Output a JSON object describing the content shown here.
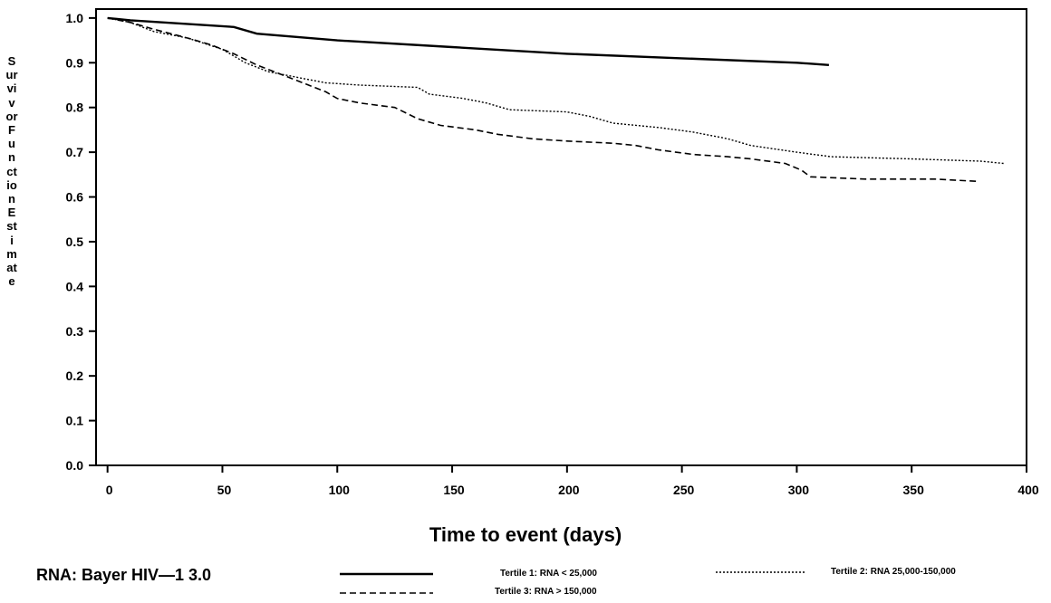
{
  "chart_data": {
    "type": "line",
    "title": "",
    "xlabel": "Time to event (days)",
    "ylabel": "Survivor Function Estimate",
    "xlim": [
      -5,
      400
    ],
    "ylim": [
      0.0,
      1.02
    ],
    "x_ticks": [
      "0",
      "50",
      "100",
      "150",
      "200",
      "250",
      "300",
      "350",
      "400"
    ],
    "y_ticks": [
      "0.0",
      "0.1",
      "0.2",
      "0.3",
      "0.4",
      "0.5",
      "0.6",
      "0.7",
      "0.8",
      "0.9",
      "1.0"
    ],
    "grid": false,
    "legend_position": "bottom",
    "series": [
      {
        "name": "Tertile 1: RNA < 25,000",
        "style": "solid",
        "points": [
          [
            0,
            1.0
          ],
          [
            10,
            0.995
          ],
          [
            55,
            0.98
          ],
          [
            65,
            0.965
          ],
          [
            100,
            0.95
          ],
          [
            150,
            0.935
          ],
          [
            200,
            0.92
          ],
          [
            250,
            0.91
          ],
          [
            300,
            0.9
          ],
          [
            314,
            0.895
          ]
        ]
      },
      {
        "name": "Tertile 2: RNA 25,000-150,000",
        "style": "dotted",
        "points": [
          [
            0,
            1.0
          ],
          [
            10,
            0.99
          ],
          [
            20,
            0.97
          ],
          [
            35,
            0.955
          ],
          [
            50,
            0.93
          ],
          [
            60,
            0.9
          ],
          [
            70,
            0.88
          ],
          [
            85,
            0.865
          ],
          [
            95,
            0.855
          ],
          [
            110,
            0.85
          ],
          [
            135,
            0.845
          ],
          [
            140,
            0.83
          ],
          [
            155,
            0.82
          ],
          [
            165,
            0.81
          ],
          [
            175,
            0.795
          ],
          [
            200,
            0.79
          ],
          [
            210,
            0.78
          ],
          [
            220,
            0.765
          ],
          [
            240,
            0.755
          ],
          [
            255,
            0.745
          ],
          [
            270,
            0.73
          ],
          [
            280,
            0.715
          ],
          [
            300,
            0.7
          ],
          [
            315,
            0.69
          ],
          [
            350,
            0.685
          ],
          [
            380,
            0.68
          ],
          [
            390,
            0.675
          ]
        ]
      },
      {
        "name": "Tertile 3: RNA > 150,000",
        "style": "dashed",
        "points": [
          [
            0,
            1.0
          ],
          [
            10,
            0.99
          ],
          [
            20,
            0.975
          ],
          [
            35,
            0.955
          ],
          [
            45,
            0.94
          ],
          [
            55,
            0.92
          ],
          [
            65,
            0.895
          ],
          [
            75,
            0.875
          ],
          [
            85,
            0.855
          ],
          [
            95,
            0.835
          ],
          [
            100,
            0.82
          ],
          [
            110,
            0.81
          ],
          [
            125,
            0.8
          ],
          [
            135,
            0.775
          ],
          [
            145,
            0.76
          ],
          [
            160,
            0.75
          ],
          [
            170,
            0.74
          ],
          [
            185,
            0.73
          ],
          [
            200,
            0.725
          ],
          [
            220,
            0.72
          ],
          [
            230,
            0.715
          ],
          [
            240,
            0.705
          ],
          [
            255,
            0.695
          ],
          [
            270,
            0.69
          ],
          [
            280,
            0.685
          ],
          [
            295,
            0.675
          ],
          [
            302,
            0.66
          ],
          [
            306,
            0.645
          ],
          [
            330,
            0.64
          ],
          [
            360,
            0.64
          ],
          [
            378,
            0.635
          ]
        ]
      }
    ],
    "caption": "RNA: Bayer HIV—1 3.0"
  }
}
